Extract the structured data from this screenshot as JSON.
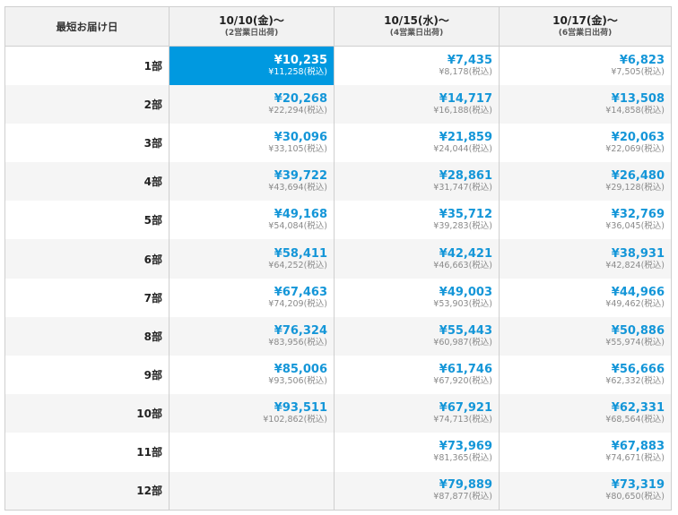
{
  "table": {
    "corner_label": "最短お届け日",
    "columns": [
      {
        "date": "10/10(金)〜",
        "sub": "(2営業日出荷)"
      },
      {
        "date": "10/15(水)〜",
        "sub": "(4営業日出荷)"
      },
      {
        "date": "10/17(金)〜",
        "sub": "(6営業日出荷)"
      }
    ],
    "rows": [
      {
        "label": "1部",
        "cells": [
          {
            "price": "¥10,235",
            "tax": "¥11,258(税込)",
            "selected": true
          },
          {
            "price": "¥7,435",
            "tax": "¥8,178(税込)"
          },
          {
            "price": "¥6,823",
            "tax": "¥7,505(税込)"
          }
        ]
      },
      {
        "label": "2部",
        "cells": [
          {
            "price": "¥20,268",
            "tax": "¥22,294(税込)"
          },
          {
            "price": "¥14,717",
            "tax": "¥16,188(税込)"
          },
          {
            "price": "¥13,508",
            "tax": "¥14,858(税込)"
          }
        ]
      },
      {
        "label": "3部",
        "cells": [
          {
            "price": "¥30,096",
            "tax": "¥33,105(税込)"
          },
          {
            "price": "¥21,859",
            "tax": "¥24,044(税込)"
          },
          {
            "price": "¥20,063",
            "tax": "¥22,069(税込)"
          }
        ]
      },
      {
        "label": "4部",
        "cells": [
          {
            "price": "¥39,722",
            "tax": "¥43,694(税込)"
          },
          {
            "price": "¥28,861",
            "tax": "¥31,747(税込)"
          },
          {
            "price": "¥26,480",
            "tax": "¥29,128(税込)"
          }
        ]
      },
      {
        "label": "5部",
        "cells": [
          {
            "price": "¥49,168",
            "tax": "¥54,084(税込)"
          },
          {
            "price": "¥35,712",
            "tax": "¥39,283(税込)"
          },
          {
            "price": "¥32,769",
            "tax": "¥36,045(税込)"
          }
        ]
      },
      {
        "label": "6部",
        "cells": [
          {
            "price": "¥58,411",
            "tax": "¥64,252(税込)"
          },
          {
            "price": "¥42,421",
            "tax": "¥46,663(税込)"
          },
          {
            "price": "¥38,931",
            "tax": "¥42,824(税込)"
          }
        ]
      },
      {
        "label": "7部",
        "cells": [
          {
            "price": "¥67,463",
            "tax": "¥74,209(税込)"
          },
          {
            "price": "¥49,003",
            "tax": "¥53,903(税込)"
          },
          {
            "price": "¥44,966",
            "tax": "¥49,462(税込)"
          }
        ]
      },
      {
        "label": "8部",
        "cells": [
          {
            "price": "¥76,324",
            "tax": "¥83,956(税込)"
          },
          {
            "price": "¥55,443",
            "tax": "¥60,987(税込)"
          },
          {
            "price": "¥50,886",
            "tax": "¥55,974(税込)"
          }
        ]
      },
      {
        "label": "9部",
        "cells": [
          {
            "price": "¥85,006",
            "tax": "¥93,506(税込)"
          },
          {
            "price": "¥61,746",
            "tax": "¥67,920(税込)"
          },
          {
            "price": "¥56,666",
            "tax": "¥62,332(税込)"
          }
        ]
      },
      {
        "label": "10部",
        "cells": [
          {
            "price": "¥93,511",
            "tax": "¥102,862(税込)"
          },
          {
            "price": "¥67,921",
            "tax": "¥74,713(税込)"
          },
          {
            "price": "¥62,331",
            "tax": "¥68,564(税込)"
          }
        ]
      },
      {
        "label": "11部",
        "cells": [
          null,
          {
            "price": "¥73,969",
            "tax": "¥81,365(税込)"
          },
          {
            "price": "¥67,883",
            "tax": "¥74,671(税込)"
          }
        ]
      },
      {
        "label": "12部",
        "cells": [
          null,
          {
            "price": "¥79,889",
            "tax": "¥87,877(税込)"
          },
          {
            "price": "¥73,319",
            "tax": "¥80,650(税込)"
          }
        ]
      }
    ]
  }
}
